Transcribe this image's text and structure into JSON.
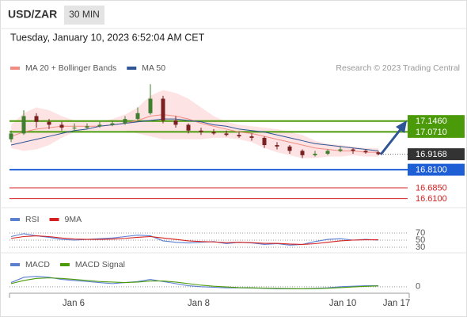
{
  "header": {
    "symbol": "USD/ZAR",
    "interval": "30 MIN",
    "timestamp": "Tuesday, January 10, 2023 6:52:04 AM CET"
  },
  "credit": "Research © 2023 Trading Central",
  "time_axis": {
    "labels": [
      "Jan 6",
      "Jan 8",
      "Jan 10",
      "Jan 17"
    ]
  },
  "chart_data": [
    {
      "type": "candlestick",
      "up_color": "#3f7f2f",
      "down_color": "#7a2020",
      "ylim": [
        16.57,
        17.56
      ],
      "candles": [
        [
          17.02,
          17.08,
          17.0,
          17.06
        ],
        [
          17.06,
          17.22,
          17.05,
          17.18
        ],
        [
          17.18,
          17.2,
          17.1,
          17.14
        ],
        [
          17.14,
          17.16,
          17.09,
          17.12
        ],
        [
          17.12,
          17.14,
          17.08,
          17.1
        ],
        [
          17.1,
          17.13,
          17.08,
          17.1
        ],
        [
          17.1,
          17.13,
          17.09,
          17.11
        ],
        [
          17.11,
          17.14,
          17.1,
          17.12
        ],
        [
          17.12,
          17.15,
          17.11,
          17.13
        ],
        [
          17.13,
          17.18,
          17.12,
          17.16
        ],
        [
          17.16,
          17.24,
          17.15,
          17.2
        ],
        [
          17.2,
          17.4,
          17.19,
          17.3
        ],
        [
          17.3,
          17.32,
          17.13,
          17.15
        ],
        [
          17.15,
          17.18,
          17.1,
          17.12
        ],
        [
          17.12,
          17.13,
          17.06,
          17.08
        ],
        [
          17.08,
          17.1,
          17.05,
          17.07
        ],
        [
          17.07,
          17.09,
          17.05,
          17.06
        ],
        [
          17.06,
          17.08,
          17.04,
          17.05
        ],
        [
          17.05,
          17.07,
          17.03,
          17.04
        ],
        [
          17.04,
          17.06,
          17.01,
          17.03
        ],
        [
          17.03,
          17.04,
          16.96,
          16.98
        ],
        [
          16.98,
          17.0,
          16.95,
          16.97
        ],
        [
          16.97,
          16.98,
          16.92,
          16.94
        ],
        [
          16.94,
          16.95,
          16.89,
          16.91
        ],
        [
          16.91,
          16.94,
          16.9,
          16.92
        ],
        [
          16.92,
          16.95,
          16.91,
          16.94
        ],
        [
          16.94,
          16.97,
          16.93,
          16.95
        ],
        [
          16.95,
          16.96,
          16.92,
          16.94
        ],
        [
          16.94,
          16.95,
          16.92,
          16.93
        ],
        [
          16.93,
          16.94,
          16.91,
          16.9168
        ]
      ],
      "series": [
        {
          "name": "MA 20 + Bollinger Bands",
          "color": "#f28b82",
          "band_color": "#fde3e3",
          "values": [
            17.04,
            17.07,
            17.09,
            17.1,
            17.11,
            17.11,
            17.11,
            17.11,
            17.12,
            17.13,
            17.15,
            17.18,
            17.19,
            17.18,
            17.16,
            17.13,
            17.11,
            17.09,
            17.07,
            17.06,
            17.04,
            17.02,
            17.0,
            16.98,
            16.96,
            16.95,
            16.94,
            16.94,
            16.93,
            16.93
          ],
          "upper": [
            17.12,
            17.2,
            17.24,
            17.22,
            17.18,
            17.15,
            17.14,
            17.14,
            17.16,
            17.19,
            17.24,
            17.32,
            17.36,
            17.34,
            17.3,
            17.24,
            17.18,
            17.14,
            17.12,
            17.11,
            17.1,
            17.09,
            17.07,
            17.05,
            17.01,
            16.99,
            16.98,
            16.97,
            16.96,
            16.96
          ],
          "lower": [
            16.96,
            16.94,
            16.95,
            16.98,
            17.03,
            17.07,
            17.08,
            17.08,
            17.08,
            17.08,
            17.06,
            17.04,
            17.02,
            17.02,
            17.02,
            17.02,
            17.03,
            17.03,
            17.02,
            17.0,
            16.96,
            16.93,
            16.91,
            16.89,
            16.89,
            16.9,
            16.9,
            16.91,
            16.9,
            16.9
          ]
        },
        {
          "name": "MA 50",
          "color": "#2f5597",
          "values": [
            16.98,
            17.0,
            17.02,
            17.04,
            17.06,
            17.08,
            17.09,
            17.11,
            17.12,
            17.13,
            17.14,
            17.15,
            17.16,
            17.16,
            17.15,
            17.14,
            17.12,
            17.11,
            17.09,
            17.08,
            17.07,
            17.05,
            17.03,
            17.01,
            16.99,
            16.98,
            16.97,
            16.96,
            16.95,
            16.94
          ]
        }
      ],
      "levels": [
        {
          "value": 17.146,
          "label": "17.1460",
          "color": "#4a9a0a",
          "style": "box"
        },
        {
          "value": 17.071,
          "label": "17.0710",
          "color": "#4a9a0a",
          "style": "box"
        },
        {
          "value": 16.9168,
          "color": "#333333",
          "style": "current"
        },
        {
          "value": 16.81,
          "label": "16.8100",
          "color": "#1f5fd6",
          "style": "box"
        },
        {
          "value": 16.685,
          "label": "16.6850",
          "color": "#d62020",
          "style": "text"
        },
        {
          "value": 16.61,
          "label": "16.6100",
          "color": "#d62020",
          "style": "text"
        }
      ]
    },
    {
      "type": "line",
      "ylim": [
        20,
        100
      ],
      "yticks": [
        70,
        50,
        30
      ],
      "series": [
        {
          "name": "RSI",
          "color": "#5b7fd1",
          "values": [
            60,
            68,
            62,
            58,
            52,
            50,
            52,
            54,
            56,
            60,
            64,
            62,
            48,
            44,
            42,
            44,
            46,
            40,
            44,
            42,
            38,
            40,
            36,
            38,
            46,
            52,
            54,
            50,
            52,
            50
          ]
        },
        {
          "name": "9MA",
          "color": "#d62020",
          "values": [
            55,
            60,
            62,
            60,
            56,
            53,
            52,
            52,
            53,
            55,
            58,
            60,
            56,
            52,
            48,
            46,
            45,
            43,
            44,
            43,
            41,
            41,
            39,
            38,
            40,
            44,
            48,
            50,
            51,
            51
          ]
        }
      ]
    },
    {
      "type": "line",
      "ylim": [
        -0.03,
        0.12
      ],
      "yticks": [
        0
      ],
      "series": [
        {
          "name": "MACD",
          "color": "#5b7fd1",
          "values": [
            0.04,
            0.09,
            0.1,
            0.09,
            0.07,
            0.06,
            0.05,
            0.04,
            0.03,
            0.04,
            0.05,
            0.07,
            0.05,
            0.03,
            0.01,
            0.0,
            -0.005,
            -0.01,
            -0.01,
            -0.012,
            -0.015,
            -0.02,
            -0.02,
            -0.02,
            -0.015,
            -0.01,
            0.0,
            0.005,
            0.01,
            0.01
          ]
        },
        {
          "name": "MACD Signal",
          "color": "#4a9a0a",
          "values": [
            0.03,
            0.06,
            0.08,
            0.085,
            0.08,
            0.07,
            0.06,
            0.05,
            0.045,
            0.04,
            0.045,
            0.055,
            0.055,
            0.045,
            0.03,
            0.015,
            0.005,
            -0.002,
            -0.008,
            -0.01,
            -0.013,
            -0.016,
            -0.018,
            -0.02,
            -0.018,
            -0.014,
            -0.008,
            -0.002,
            0.004,
            0.008
          ]
        }
      ]
    }
  ]
}
